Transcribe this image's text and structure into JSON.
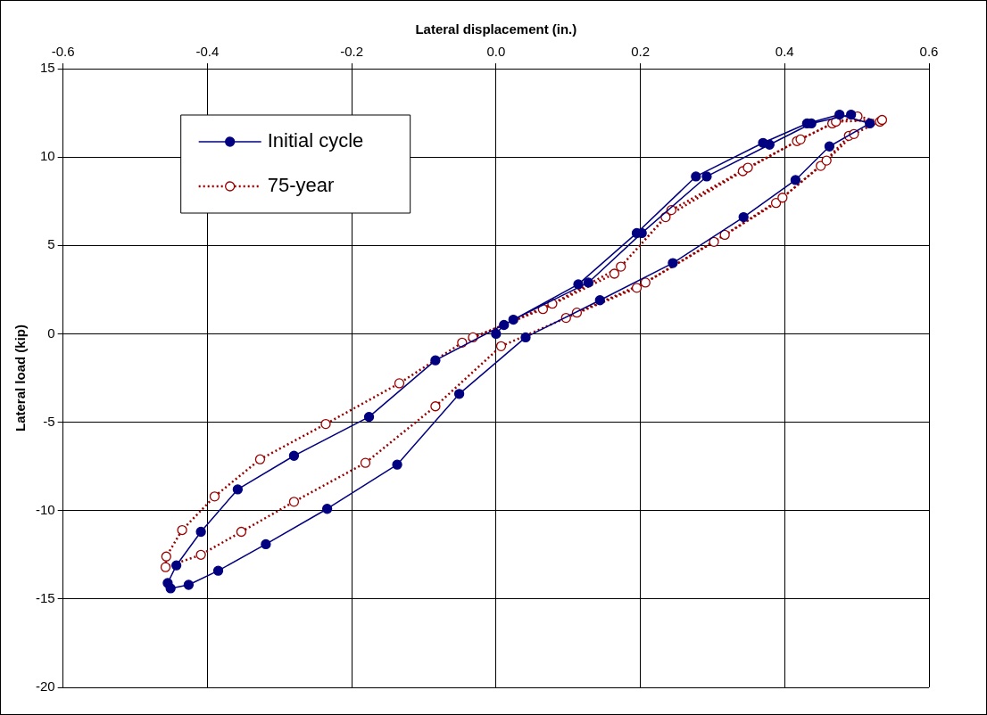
{
  "chart_data": {
    "type": "line",
    "xlabel": "Lateral displacement (in.)",
    "ylabel": "Lateral load (kip)",
    "xlim": [
      -0.6,
      0.6
    ],
    "xticks": [
      {
        "value": -0.6,
        "label": "-0.6"
      },
      {
        "value": -0.4,
        "label": "-0.4"
      },
      {
        "value": -0.2,
        "label": "-0.2"
      },
      {
        "value": 0,
        "label": "0.0"
      },
      {
        "value": 0.2,
        "label": "0.2"
      },
      {
        "value": 0.4,
        "label": "0.4"
      },
      {
        "value": 0.6,
        "label": "0.6"
      }
    ],
    "ylim": [
      -20,
      15
    ],
    "yticks": [
      -20,
      -15,
      -10,
      -5,
      0,
      5,
      10,
      15
    ],
    "grid": true,
    "legend": "top left",
    "marker": "circle",
    "series": [
      {
        "name": "Initial cycle",
        "color": "#000080",
        "line_style": "solid",
        "x": [
          0,
          0.011,
          0.114,
          0.195,
          0.277,
          0.37,
          0.431,
          0.476,
          0.518,
          0.462,
          0.415,
          0.343,
          0.245,
          0.144,
          0.041,
          -0.051,
          -0.137,
          -0.234,
          -0.319,
          -0.385,
          -0.426,
          -0.451,
          -0.455,
          -0.443,
          -0.409,
          -0.358,
          -0.28,
          -0.176,
          -0.084,
          0.024,
          0.128,
          0.202,
          0.292,
          0.379,
          0.437,
          0.492
        ],
        "values": [
          0,
          0.5,
          2.8,
          5.7,
          8.9,
          10.8,
          11.9,
          12.4,
          11.9,
          10.6,
          8.7,
          6.6,
          4.0,
          1.9,
          -0.2,
          -3.4,
          -7.4,
          -9.9,
          -11.9,
          -13.4,
          -14.2,
          -14.4,
          -14.1,
          -13.1,
          -11.2,
          -8.8,
          -6.9,
          -4.7,
          -1.5,
          0.8,
          2.9,
          5.7,
          8.9,
          10.7,
          11.9,
          12.4
        ]
      },
      {
        "name": "75-year",
        "color": "#990000",
        "line_style": "dotted",
        "x": [
          -0.032,
          0.065,
          0.164,
          0.235,
          0.342,
          0.417,
          0.466,
          0.501,
          0.532,
          0.489,
          0.45,
          0.388,
          0.302,
          0.195,
          0.097,
          0.007,
          -0.084,
          -0.181,
          -0.28,
          -0.353,
          -0.409,
          -0.458,
          -0.457,
          -0.435,
          -0.39,
          -0.327,
          -0.236,
          -0.134,
          -0.047,
          0.078,
          0.173,
          0.243,
          0.349,
          0.422,
          0.471,
          0.535,
          0.496,
          0.458,
          0.397,
          0.317,
          0.207,
          0.112
        ],
        "values": [
          -0.2,
          1.4,
          3.4,
          6.6,
          9.2,
          10.9,
          11.9,
          12.3,
          12.0,
          11.2,
          9.5,
          7.4,
          5.2,
          2.6,
          0.9,
          -0.7,
          -4.1,
          -7.3,
          -9.5,
          -11.2,
          -12.5,
          -13.2,
          -12.6,
          -11.1,
          -9.2,
          -7.1,
          -5.1,
          -2.8,
          -0.5,
          1.7,
          3.8,
          7.0,
          9.4,
          11.0,
          12.0,
          12.1,
          11.3,
          9.8,
          7.7,
          5.6,
          2.9,
          1.2
        ]
      }
    ]
  }
}
